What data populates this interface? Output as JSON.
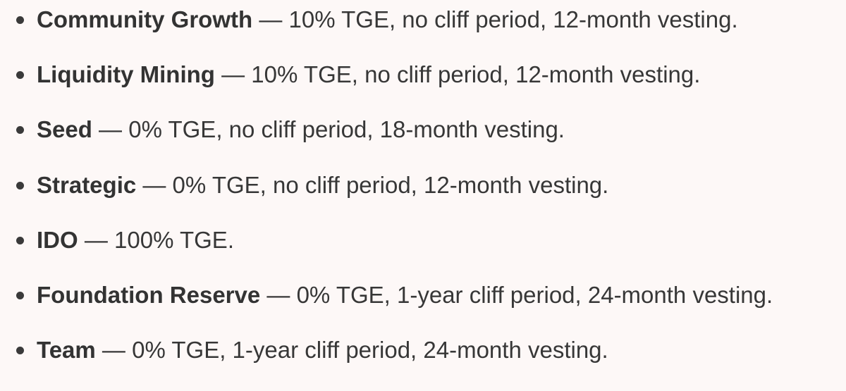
{
  "items": [
    {
      "name": "Community Growth",
      "detail": " — 10% TGE, no cliff period, 12-month vesting."
    },
    {
      "name": "Liquidity Mining",
      "detail": " — 10% TGE, no cliff period, 12-month vesting."
    },
    {
      "name": "Seed",
      "detail": " — 0% TGE, no cliff period, 18-month vesting."
    },
    {
      "name": "Strategic",
      "detail": " — 0% TGE, no cliff period, 12-month vesting."
    },
    {
      "name": "IDO",
      "detail": " — 100% TGE."
    },
    {
      "name": "Foundation Reserve",
      "detail": " — 0% TGE, 1-year cliff period, 24-month vesting."
    },
    {
      "name": "Team",
      "detail": " — 0% TGE, 1-year cliff period, 24-month vesting."
    }
  ]
}
